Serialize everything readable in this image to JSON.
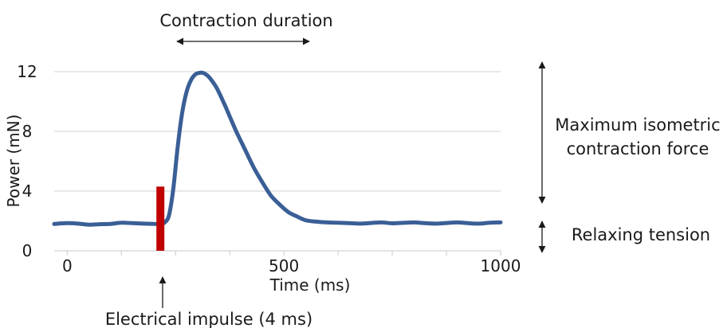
{
  "chart_data": {
    "type": "line",
    "xlabel": "Time (ms)",
    "ylabel": "Power (mN)",
    "xlim": [
      -30,
      1000
    ],
    "ylim": [
      0,
      12.6
    ],
    "x_ticks": [
      0,
      500,
      1000
    ],
    "y_ticks": [
      0,
      4,
      8,
      12
    ],
    "grid": true,
    "series": [
      {
        "color": "#3a5f96",
        "x": [
          -30,
          0,
          25,
          50,
          75,
          100,
          125,
          150,
          175,
          200,
          215,
          225,
          235,
          245,
          255,
          265,
          275,
          285,
          295,
          305,
          315,
          325,
          335,
          345,
          360,
          375,
          390,
          410,
          430,
          450,
          470,
          490,
          510,
          530,
          550,
          575,
          600,
          625,
          650,
          675,
          700,
          725,
          750,
          775,
          800,
          825,
          850,
          875,
          900,
          925,
          950,
          975,
          1000
        ],
        "y": [
          1.8,
          1.85,
          1.82,
          1.75,
          1.78,
          1.8,
          1.88,
          1.85,
          1.82,
          1.8,
          1.8,
          1.9,
          2.4,
          4.2,
          7.0,
          9.2,
          10.6,
          11.4,
          11.8,
          11.92,
          11.9,
          11.7,
          11.35,
          10.9,
          10.0,
          9.0,
          8.0,
          6.8,
          5.6,
          4.6,
          3.7,
          3.1,
          2.6,
          2.3,
          2.05,
          1.95,
          1.9,
          1.88,
          1.85,
          1.82,
          1.86,
          1.9,
          1.84,
          1.87,
          1.9,
          1.85,
          1.82,
          1.86,
          1.9,
          1.85,
          1.82,
          1.88,
          1.9
        ]
      }
    ],
    "impulse": {
      "x": 215,
      "y_top": 4.3,
      "color": "#c00000"
    },
    "annotations": [
      {
        "text": "Contraction duration"
      },
      {
        "text": "Maximum isometric"
      },
      {
        "text": "contraction force"
      },
      {
        "text": "Relaxing tension"
      },
      {
        "text": "Electrical impulse (4 ms)"
      }
    ]
  }
}
